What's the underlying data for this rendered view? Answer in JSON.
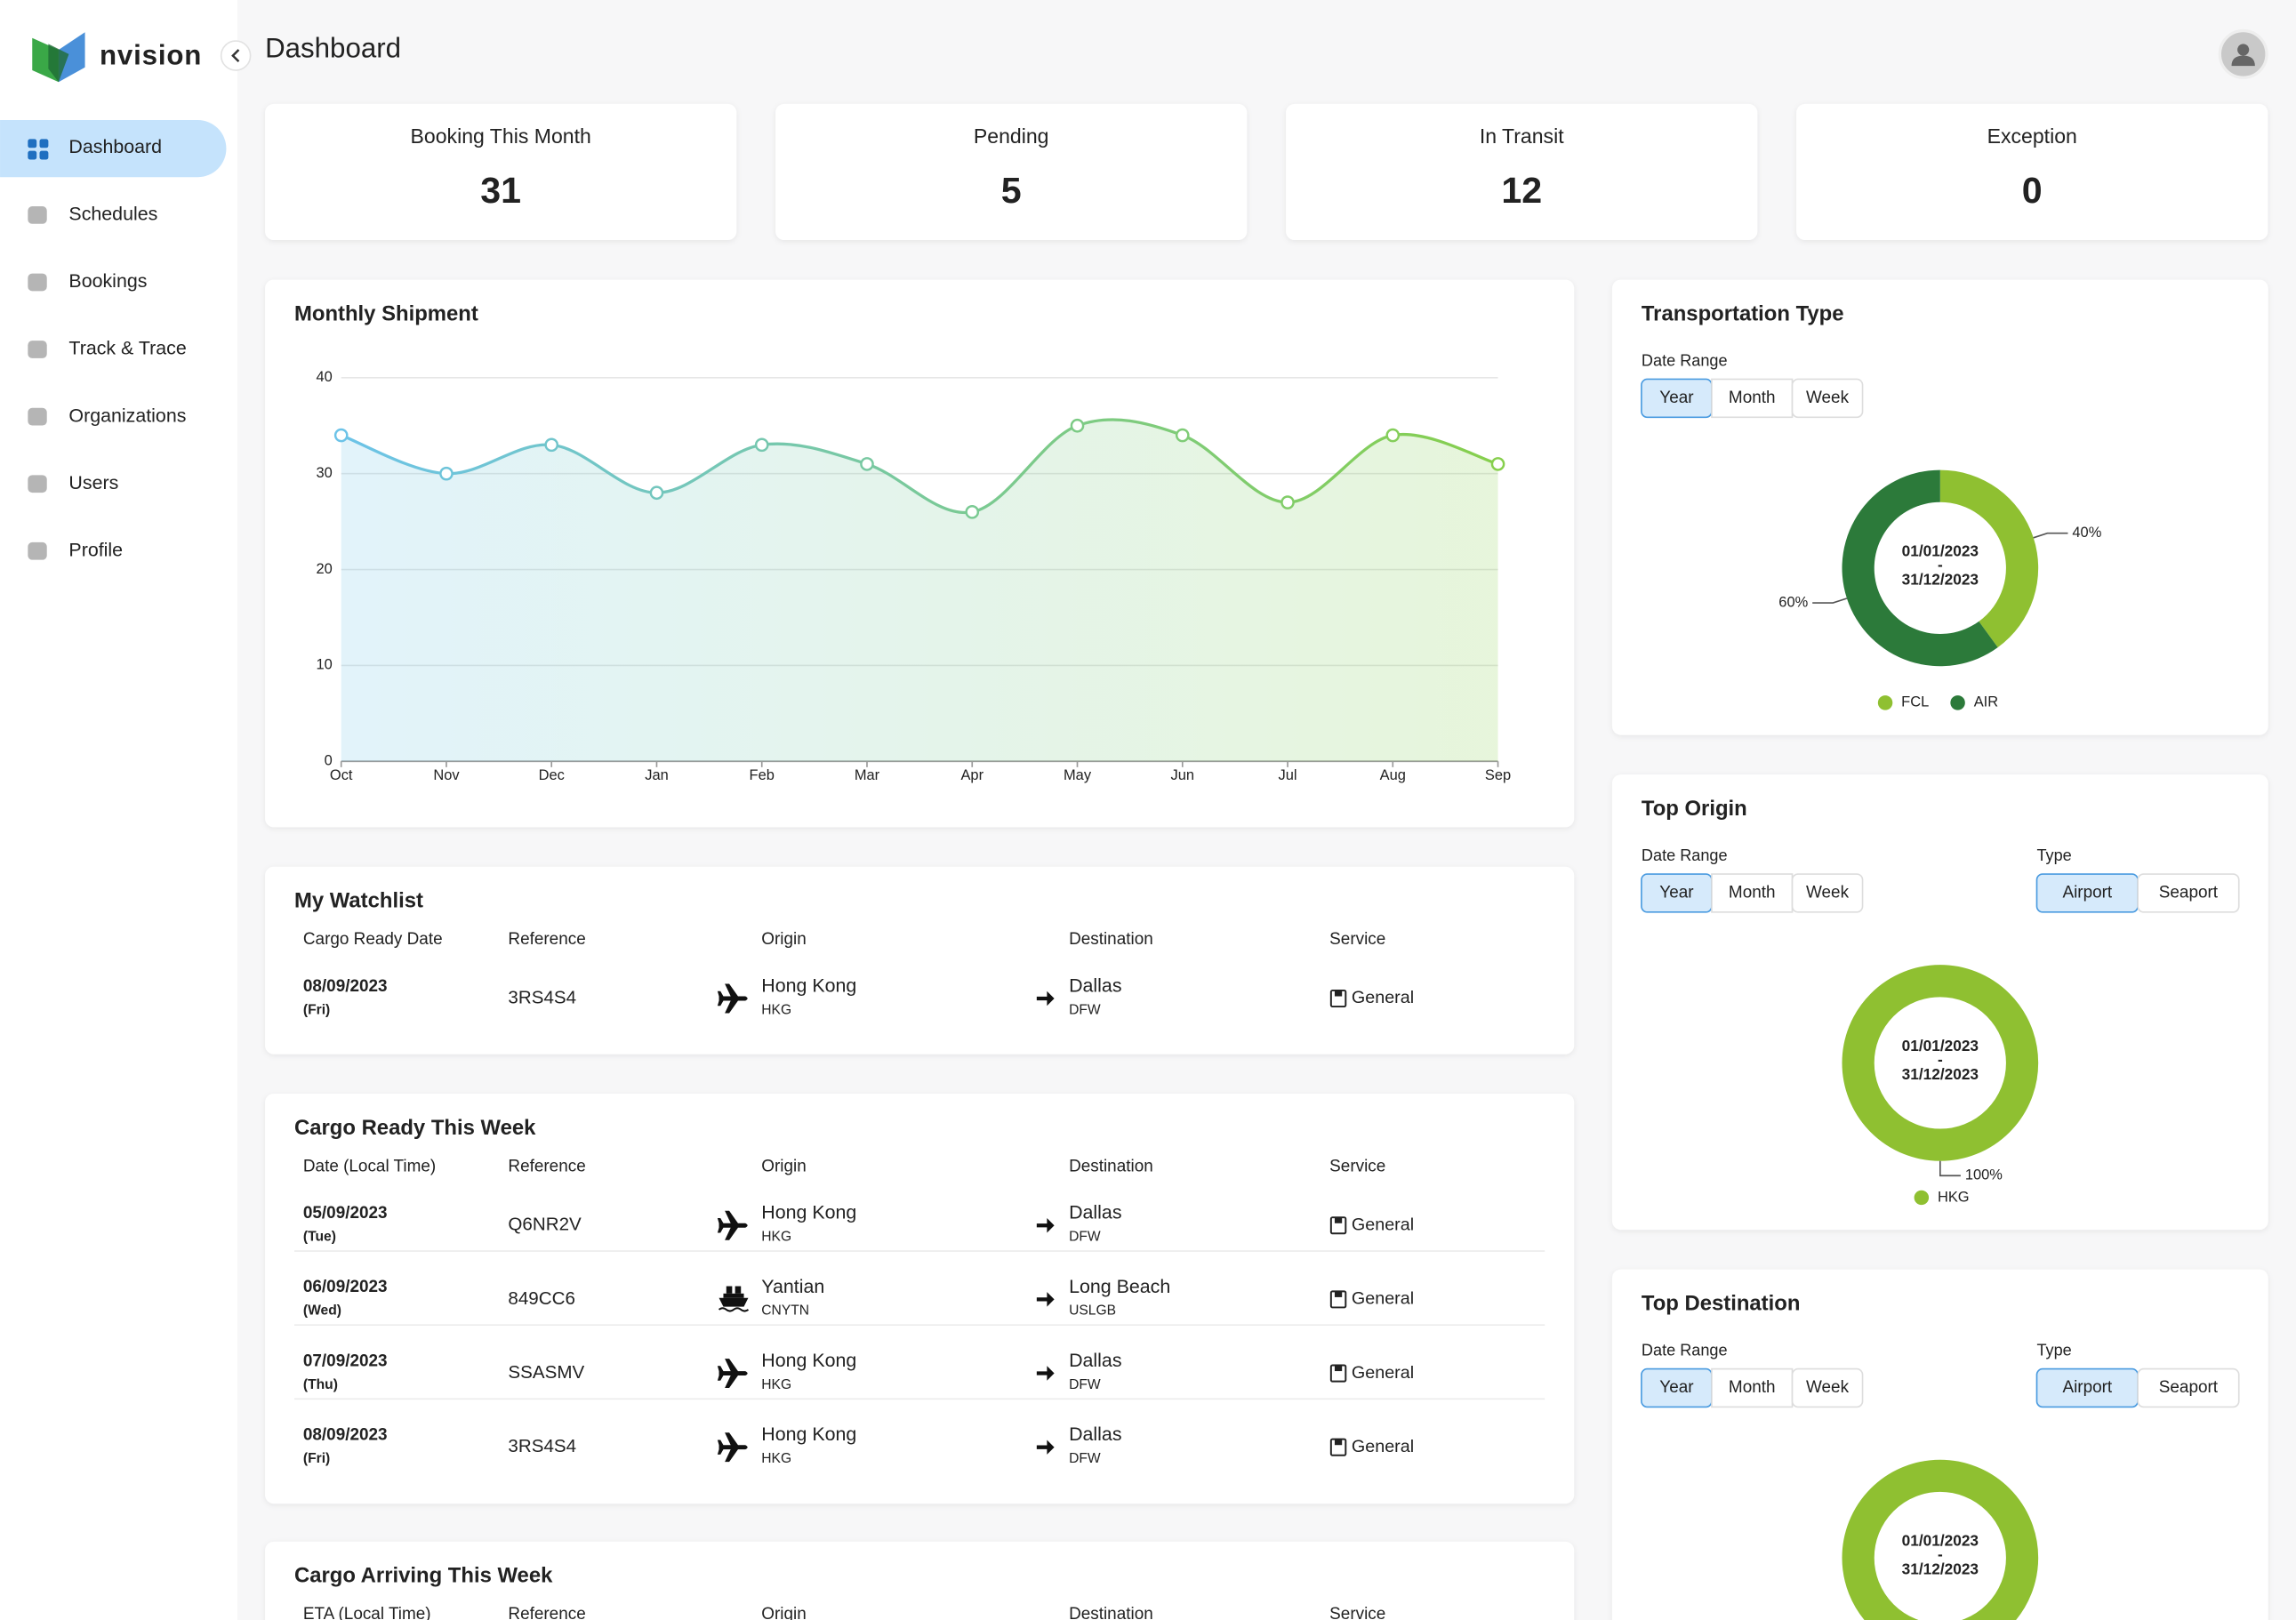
{
  "sidebar": {
    "logo": "nvision",
    "nav": [
      "Dashboard",
      "Schedules",
      "Bookings",
      "Track & Trace",
      "Organizations",
      "Users",
      "Profile"
    ],
    "active": 0
  },
  "header": {
    "title": "Dashboard"
  },
  "stats": [
    {
      "label": "Booking This Month",
      "value": 31,
      "color": "#222222"
    },
    {
      "label": "Pending",
      "value": 5,
      "color": "#222222"
    },
    {
      "label": "In Transit",
      "value": 12,
      "color": "#222222"
    },
    {
      "label": "Exception",
      "value": 0,
      "color": "#e0505a"
    }
  ],
  "chart_data": [
    {
      "type": "line",
      "title": "Monthly Shipment",
      "categories": [
        "Oct",
        "Nov",
        "Dec",
        "Jan",
        "Feb",
        "Mar",
        "Apr",
        "May",
        "Jun",
        "Jul",
        "Aug",
        "Sep"
      ],
      "values": [
        34,
        30,
        33,
        28,
        33,
        31,
        26,
        35,
        34,
        27,
        34,
        31
      ],
      "ylim": [
        0,
        40
      ],
      "yticks": [
        0,
        10,
        20,
        30,
        40
      ],
      "grid": true,
      "colors": [
        "#6cc3e8",
        "#86cf4c"
      ]
    },
    {
      "type": "pie",
      "title": "Transportation Type",
      "filters": [
        {
          "label": "Date Range",
          "options": [
            "Year",
            "Month",
            "Week"
          ],
          "selected": 0
        }
      ],
      "center": [
        "01/01/2023",
        "-",
        "31/12/2023"
      ],
      "categories": [
        "FCL",
        "AIR"
      ],
      "values": [
        40,
        60
      ],
      "value_labels": [
        "40%",
        "60%"
      ],
      "colors": [
        "#8fc031",
        "#2c7a3a"
      ]
    },
    {
      "type": "pie",
      "title": "Top Origin",
      "filters": [
        {
          "label": "Date Range",
          "options": [
            "Year",
            "Month",
            "Week"
          ],
          "selected": 0
        },
        {
          "label": "Type",
          "options": [
            "Airport",
            "Seaport"
          ],
          "selected": 0
        }
      ],
      "center": [
        "01/01/2023",
        "-",
        "31/12/2023"
      ],
      "categories": [
        "HKG"
      ],
      "values": [
        100
      ],
      "value_labels": [
        "100%"
      ],
      "colors": [
        "#8fc031"
      ]
    },
    {
      "type": "pie",
      "title": "Top Destination",
      "filters": [
        {
          "label": "Date Range",
          "options": [
            "Year",
            "Month",
            "Week"
          ],
          "selected": 0
        },
        {
          "label": "Type",
          "options": [
            "Airport",
            "Seaport"
          ],
          "selected": 0
        }
      ],
      "center": [
        "01/01/2023",
        "-",
        "31/12/2023"
      ],
      "colors": [
        "#8fc031"
      ]
    }
  ],
  "tables": [
    {
      "title": "My Watchlist",
      "columns": [
        "Cargo Ready Date",
        "Reference",
        "Origin",
        "Destination",
        "Service"
      ],
      "rows": [
        {
          "date": "08/09/2023",
          "day": "(Fri)",
          "reference": "3RS4S4",
          "mode": "air",
          "origin": "Hong Kong",
          "origin_code": "HKG",
          "destination": "Dallas",
          "destination_code": "DFW",
          "service": "General"
        }
      ]
    },
    {
      "title": "Cargo Ready This Week",
      "columns": [
        "Date (Local Time)",
        "Reference",
        "Origin",
        "Destination",
        "Service"
      ],
      "rows": [
        {
          "date": "05/09/2023",
          "day": "(Tue)",
          "reference": "Q6NR2V",
          "mode": "air",
          "origin": "Hong Kong",
          "origin_code": "HKG",
          "destination": "Dallas",
          "destination_code": "DFW",
          "service": "General"
        },
        {
          "date": "06/09/2023",
          "day": "(Wed)",
          "reference": "849CC6",
          "mode": "sea",
          "origin": "Yantian",
          "origin_code": "CNYTN",
          "destination": "Long Beach",
          "destination_code": "USLGB",
          "service": "General"
        },
        {
          "date": "07/09/2023",
          "day": "(Thu)",
          "reference": "SSASMV",
          "mode": "air",
          "origin": "Hong Kong",
          "origin_code": "HKG",
          "destination": "Dallas",
          "destination_code": "DFW",
          "service": "General"
        },
        {
          "date": "08/09/2023",
          "day": "(Fri)",
          "reference": "3RS4S4",
          "mode": "air",
          "origin": "Hong Kong",
          "origin_code": "HKG",
          "destination": "Dallas",
          "destination_code": "DFW",
          "service": "General"
        }
      ]
    },
    {
      "title": "Cargo Arriving This Week",
      "columns": [
        "ETA (Local Time)",
        "Reference",
        "Origin",
        "Destination",
        "Service"
      ],
      "rows": []
    }
  ]
}
